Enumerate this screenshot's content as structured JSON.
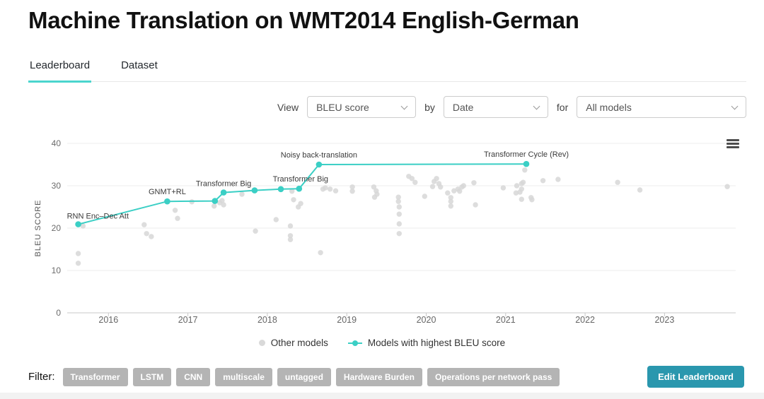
{
  "page": {
    "title": "Machine Translation on WMT2014 English-German",
    "tabs": [
      {
        "label": "Leaderboard",
        "active": true
      },
      {
        "label": "Dataset",
        "active": false
      }
    ],
    "controls": {
      "view_label": "View",
      "metric_value": "BLEU score",
      "by_label": "by",
      "axis_value": "Date",
      "for_label": "for",
      "models_value": "All models"
    },
    "legend": [
      {
        "label": "Other models",
        "type": "dot",
        "color": "#d9d9d9"
      },
      {
        "label": "Models with highest BLEU score",
        "type": "line-dot",
        "color": "#3bcfc5"
      }
    ],
    "filter": {
      "label": "Filter:",
      "tags": [
        "Transformer",
        "LSTM",
        "CNN",
        "multiscale",
        "untagged",
        "Hardware Burden",
        "Operations per network pass"
      ]
    },
    "edit_button_label": "Edit Leaderboard",
    "icons": {
      "chart_menu": "hamburger-icon",
      "select_chevron": "chevron-down-icon"
    },
    "colors": {
      "accent_teal": "#3bcfc5",
      "tab_underline": "#4bd5ce",
      "button_teal": "#2a97ae",
      "pill_gray": "#b4b4b4"
    }
  },
  "chart_data": {
    "type": "scatter",
    "title": "",
    "xlabel": "",
    "ylabel": "BLEU SCORE",
    "ylim": [
      0,
      40
    ],
    "yticks": [
      0,
      10,
      20,
      30,
      40
    ],
    "xticks": [
      2016,
      2017,
      2018,
      2019,
      2020,
      2021,
      2022,
      2023
    ],
    "grid": true,
    "legend_position": "bottom",
    "series": [
      {
        "name": "Models with highest BLEU score",
        "type": "line+scatter",
        "color": "#3bcfc5",
        "points": [
          {
            "x": 2015.62,
            "y": 20.9,
            "label": "RNN Enc–Dec Att",
            "anchor": "start",
            "dx": -16,
            "dy": -8
          },
          {
            "x": 2016.74,
            "y": 26.3,
            "label": "GNMT+RL",
            "anchor": "middle",
            "dx": 0,
            "dy": -10
          },
          {
            "x": 2017.34,
            "y": 26.4
          },
          {
            "x": 2017.45,
            "y": 28.4,
            "label": "Transformer Big",
            "anchor": "middle",
            "dx": 0,
            "dy": -9
          },
          {
            "x": 2017.84,
            "y": 28.9
          },
          {
            "x": 2018.17,
            "y": 29.2
          },
          {
            "x": 2018.4,
            "y": 29.3,
            "label": "Transformer Big",
            "anchor": "middle",
            "dx": 2,
            "dy": -10
          },
          {
            "x": 2018.65,
            "y": 35.0,
            "label": "Noisy back-translation",
            "anchor": "middle",
            "dx": 0,
            "dy": -10
          },
          {
            "x": 2021.26,
            "y": 35.14,
            "label": "Transformer Cycle (Rev)",
            "anchor": "middle",
            "dx": 0,
            "dy": -10
          }
        ]
      },
      {
        "name": "Other models",
        "type": "scatter",
        "color": "#d7d7d7",
        "points": [
          [
            2015.62,
            14.0
          ],
          [
            2015.62,
            11.7
          ],
          [
            2015.68,
            20.5
          ],
          [
            2016.45,
            20.8
          ],
          [
            2016.48,
            18.7
          ],
          [
            2016.54,
            18.0
          ],
          [
            2016.84,
            24.2
          ],
          [
            2016.87,
            22.3
          ],
          [
            2017.05,
            26.2
          ],
          [
            2017.33,
            25.2
          ],
          [
            2017.4,
            26.0
          ],
          [
            2017.43,
            26.5
          ],
          [
            2017.45,
            25.5
          ],
          [
            2017.68,
            28.0
          ],
          [
            2017.85,
            19.3
          ],
          [
            2018.11,
            22.0
          ],
          [
            2018.29,
            20.5
          ],
          [
            2018.29,
            18.2
          ],
          [
            2018.29,
            17.3
          ],
          [
            2018.31,
            28.7
          ],
          [
            2018.33,
            26.7
          ],
          [
            2018.39,
            25.0
          ],
          [
            2018.42,
            25.8
          ],
          [
            2018.67,
            14.2
          ],
          [
            2018.7,
            29.2
          ],
          [
            2018.73,
            29.5
          ],
          [
            2018.79,
            29.2
          ],
          [
            2018.86,
            28.8
          ],
          [
            2019.07,
            29.7
          ],
          [
            2019.07,
            28.7
          ],
          [
            2019.34,
            29.7
          ],
          [
            2019.35,
            27.3
          ],
          [
            2019.37,
            28.8
          ],
          [
            2019.38,
            28.0
          ],
          [
            2019.65,
            27.3
          ],
          [
            2019.65,
            26.3
          ],
          [
            2019.66,
            25.0
          ],
          [
            2019.66,
            23.3
          ],
          [
            2019.66,
            21.0
          ],
          [
            2019.66,
            18.7
          ],
          [
            2019.78,
            32.2
          ],
          [
            2019.82,
            31.7
          ],
          [
            2019.86,
            30.8
          ],
          [
            2019.98,
            27.5
          ],
          [
            2020.08,
            29.8
          ],
          [
            2020.1,
            31.0
          ],
          [
            2020.13,
            31.7
          ],
          [
            2020.16,
            30.5
          ],
          [
            2020.18,
            29.7
          ],
          [
            2020.27,
            28.3
          ],
          [
            2020.31,
            27.2
          ],
          [
            2020.31,
            26.3
          ],
          [
            2020.31,
            25.2
          ],
          [
            2020.35,
            28.8
          ],
          [
            2020.4,
            29.2
          ],
          [
            2020.42,
            28.7
          ],
          [
            2020.45,
            29.7
          ],
          [
            2020.47,
            30.0
          ],
          [
            2020.6,
            30.7
          ],
          [
            2020.62,
            25.5
          ],
          [
            2020.97,
            29.5
          ],
          [
            2021.13,
            28.3
          ],
          [
            2021.14,
            30.0
          ],
          [
            2021.18,
            28.5
          ],
          [
            2021.2,
            30.5
          ],
          [
            2021.2,
            29.2
          ],
          [
            2021.2,
            26.8
          ],
          [
            2021.22,
            30.8
          ],
          [
            2021.24,
            33.7
          ],
          [
            2021.32,
            27.2
          ],
          [
            2021.33,
            26.7
          ],
          [
            2021.47,
            31.2
          ],
          [
            2021.66,
            31.5
          ],
          [
            2022.41,
            30.8
          ],
          [
            2022.69,
            29.0
          ],
          [
            2023.79,
            29.8
          ]
        ]
      }
    ]
  }
}
